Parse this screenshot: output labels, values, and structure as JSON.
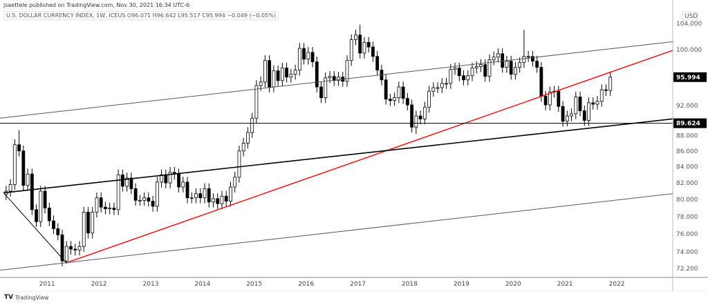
{
  "header": {
    "publisher": "jsaettele published on TradingView.com, Nov 30, 2021 16:34 UTC-6",
    "legend": "U.S. DOLLAR CURRENCY INDEX, 1W, ICEUS  O96.071  H96.642  L95.517  C95.994  −0.049 (−0.05%)"
  },
  "footer": {
    "brand": "TradingView",
    "logo_icon": "tradingview-logo-icon"
  },
  "chart_data": {
    "type": "candlestick",
    "title": "U.S. DOLLAR CURRENCY INDEX, 1W, ICEUS",
    "currency": "USD",
    "y_scale": "log",
    "ylim": [
      71.6,
      106
    ],
    "xlim": [
      2010.09,
      2023.08
    ],
    "grid": false,
    "x_ticks": [
      "2011",
      "2012",
      "2013",
      "2014",
      "2015",
      "2016",
      "2017",
      "2018",
      "2019",
      "2020",
      "2021",
      "2022"
    ],
    "y_ticks": [
      "104.000",
      "100.000",
      "92.000",
      "88.000",
      "86.000",
      "84.000",
      "82.000",
      "80.000",
      "78.000",
      "76.000",
      "74.000",
      "72.200"
    ],
    "price_labels": [
      {
        "value": "95.994",
        "price": 95.994,
        "color": "#000000"
      },
      {
        "value": "89.624",
        "price": 89.624,
        "color": "#000000"
      }
    ],
    "series_start": "2010-03",
    "series_frequency": "monthly (approximate, read from chart)",
    "close": [
      81.0,
      81.8,
      86.8,
      86.0,
      81.7,
      83.1,
      78.8,
      77.4,
      81.0,
      79.0,
      77.5,
      76.6,
      75.9,
      73.0,
      74.6,
      74.3,
      74.2,
      74.6,
      78.5,
      76.1,
      78.5,
      80.2,
      79.1,
      78.9,
      79.0,
      78.8,
      83.0,
      81.6,
      82.6,
      81.3,
      79.9,
      79.9,
      80.2,
      79.8,
      79.2,
      82.1,
      83.0,
      82.0,
      83.3,
      83.1,
      81.5,
      82.1,
      80.2,
      80.2,
      80.7,
      80.2,
      81.3,
      79.7,
      80.1,
      79.5,
      80.4,
      79.8,
      81.5,
      82.7,
      86.0,
      87.0,
      88.4,
      90.3,
      94.8,
      95.3,
      98.4,
      94.6,
      96.9,
      95.5,
      97.3,
      96.0,
      96.4,
      97.0,
      100.2,
      98.6,
      99.6,
      98.2,
      94.6,
      93.1,
      95.9,
      96.1,
      95.5,
      96.0,
      95.4,
      98.4,
      101.5,
      102.2,
      99.5,
      101.1,
      100.4,
      99.0,
      97.0,
      95.6,
      92.9,
      92.7,
      93.1,
      94.6,
      93.0,
      92.1,
      89.1,
      90.6,
      90.2,
      91.8,
      94.0,
      94.5,
      94.5,
      95.1,
      95.1,
      97.1,
      97.3,
      96.2,
      95.6,
      96.2,
      97.3,
      97.5,
      97.8,
      96.1,
      98.5,
      98.9,
      99.4,
      97.4,
      98.3,
      96.4,
      97.4,
      98.1,
      99.0,
      99.0,
      98.3,
      97.4,
      93.3,
      92.1,
      93.9,
      94.0,
      91.9,
      89.9,
      90.6,
      90.9,
      93.2,
      91.3,
      90.0,
      92.4,
      92.2,
      92.6,
      94.2,
      94.1,
      95.994
    ],
    "extremes": [
      {
        "date": "2010-06",
        "high": 88.7
      },
      {
        "date": "2011-05",
        "low": 72.7
      },
      {
        "date": "2017-01",
        "high": 103.8
      },
      {
        "date": "2018-02",
        "low": 88.2
      },
      {
        "date": "2020-03",
        "high": 103.0
      },
      {
        "date": "2021-01",
        "low": 89.2
      }
    ],
    "drawings": [
      {
        "kind": "trendline",
        "color": "#555555",
        "from": [
          2010.09,
          90.3
        ],
        "to": [
          2023.08,
          101.2
        ]
      },
      {
        "kind": "trendline",
        "color": "#ff0000",
        "from": [
          2011.37,
          72.8
        ],
        "to": [
          2023.08,
          99.9
        ]
      },
      {
        "kind": "trendline",
        "color": "#000000",
        "from": [
          2010.16,
          80.8
        ],
        "to": [
          2023.08,
          90.2
        ]
      },
      {
        "kind": "trendline",
        "color": "#555555",
        "from": [
          2010.09,
          72.0
        ],
        "to": [
          2023.08,
          80.7
        ]
      },
      {
        "kind": "trendline",
        "color": "#000000",
        "from": [
          2010.16,
          80.8
        ],
        "to": [
          2011.37,
          72.8
        ]
      },
      {
        "kind": "horizontal",
        "color": "#000000",
        "price": 89.624
      }
    ]
  }
}
